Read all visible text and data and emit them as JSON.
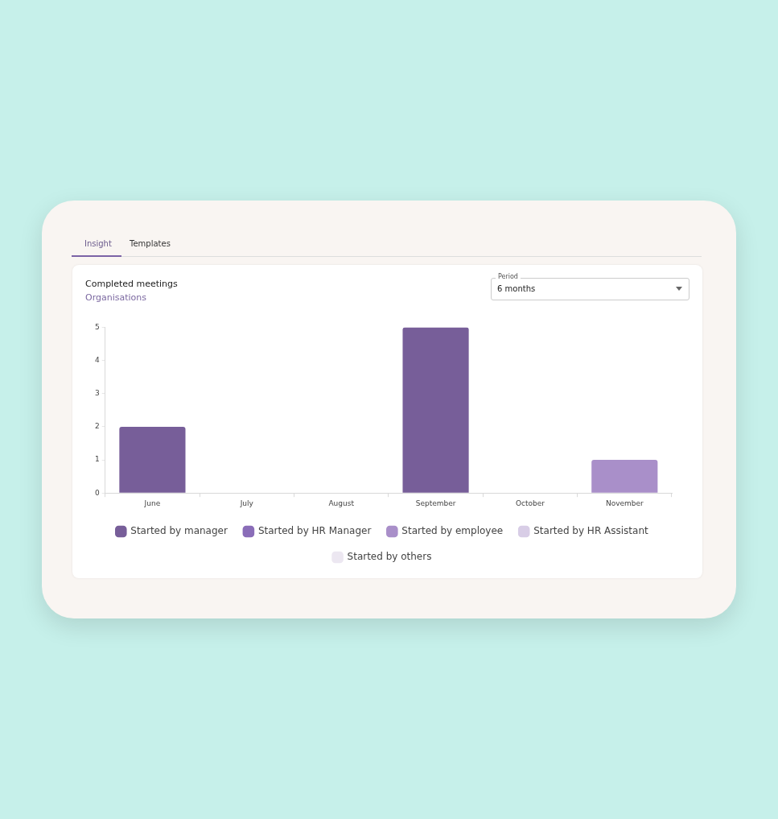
{
  "chart_data": {
    "type": "bar",
    "title": "Completed meetings",
    "subtitle": "Organisations",
    "annotations": [
      "Insight",
      "Templates",
      "Period",
      "6 months"
    ],
    "categories": [
      "June",
      "July",
      "August",
      "September",
      "October",
      "November"
    ],
    "stacked": true,
    "ylim": [
      0,
      5
    ],
    "yticks": [
      0,
      1,
      2,
      3,
      4,
      5
    ],
    "grid": false,
    "legend": "bottom",
    "series": [
      {
        "name": "Started by manager",
        "color": "#775e99",
        "values": [
          2,
          0,
          0,
          5,
          0,
          0
        ]
      },
      {
        "name": "Started by HR Manager",
        "color": "#8a6db8",
        "values": [
          0,
          0,
          0,
          0,
          0,
          0
        ]
      },
      {
        "name": "Started by employee",
        "color": "#a98fc9",
        "values": [
          0,
          0,
          0,
          0,
          0,
          1
        ]
      },
      {
        "name": "Started by HR Assistant",
        "color": "#d8cde6",
        "values": [
          0,
          0,
          0,
          0,
          0,
          0
        ]
      },
      {
        "name": "Started by others",
        "color": "#ece7f1",
        "values": [
          0,
          0,
          0,
          0,
          0,
          0
        ]
      }
    ]
  }
}
